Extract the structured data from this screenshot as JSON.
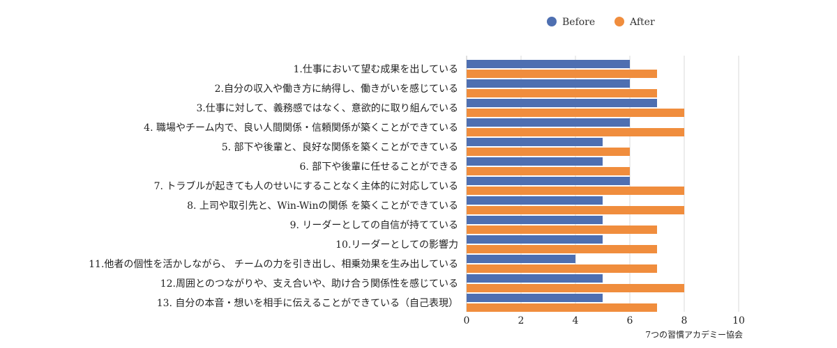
{
  "chart_data": {
    "type": "bar",
    "orientation": "horizontal",
    "categories": [
      "1.仕事において望む成果を出している",
      "2.自分の収入や働き方に納得し、働きがいを感じている",
      "3.仕事に対して、義務感ではなく、意欲的に取り組んでいる",
      "4. 職場やチーム内で、良い人間関係・信頼関係が築くことができている",
      "5. 部下や後輩と、良好な関係を築くことができている",
      "6. 部下や後輩に任せることができる",
      "7. トラブルが起きても人のせいにすることなく主体的に対応している",
      "8. 上司や取引先と、Win-Winの関係 を築くことができている",
      "9. リーダーとしての自信が持てている",
      "10.リーダーとしての影響力",
      "11.他者の個性を活かしながら、 チームの力を引き出し、相乗効果を生み出している",
      "12.周囲とのつながりや、支え合いや、助け合う関係性を感じている",
      "13. 自分の本音・想いを相手に伝えることができている（自己表現）"
    ],
    "series": [
      {
        "name": "Before",
        "color": "#4e6fb1",
        "values": [
          6,
          6,
          7,
          6,
          5,
          5,
          6,
          5,
          5,
          5,
          4,
          5,
          5
        ]
      },
      {
        "name": "After",
        "color": "#f08d3d",
        "values": [
          7,
          7,
          8,
          8,
          6,
          6,
          8,
          8,
          7,
          7,
          7,
          8,
          7
        ]
      }
    ],
    "xlim": [
      0,
      10
    ],
    "xticks": [
      0,
      2,
      4,
      6,
      8,
      10
    ],
    "grid": true,
    "legend": "top-center",
    "source": "7つの習慣アカデミー協会"
  }
}
